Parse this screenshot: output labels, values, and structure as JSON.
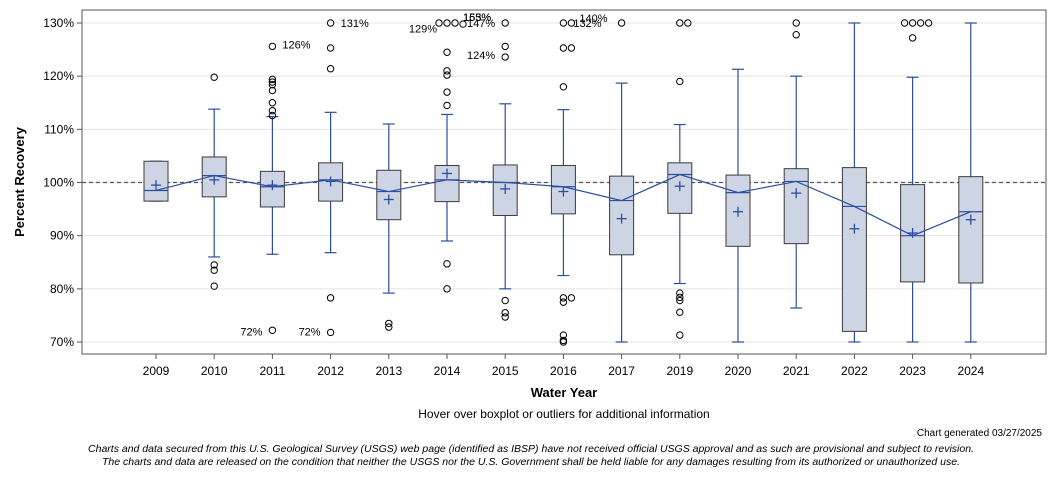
{
  "chart_data": {
    "type": "boxplot",
    "ylabel": "Percent Recovery",
    "xlabel": "Water Year",
    "ylim": [
      70,
      130
    ],
    "y_ticks": [
      70,
      80,
      90,
      100,
      110,
      120,
      130
    ],
    "y_tick_format": "%",
    "reference_line": 100,
    "grid": true,
    "categories": [
      "2009",
      "2010",
      "2011",
      "2012",
      "2013",
      "2014",
      "2015",
      "2016",
      "2017",
      "2019",
      "2020",
      "2021",
      "2022",
      "2023",
      "2024"
    ],
    "boxes": [
      {
        "year": "2009",
        "low": 96.5,
        "q1": 96.5,
        "median": 98.5,
        "q3": 104,
        "high": 104,
        "mean": 99.5,
        "outliers": []
      },
      {
        "year": "2010",
        "low": 86,
        "q1": 97.3,
        "median": 101.3,
        "q3": 104.8,
        "high": 113.8,
        "mean": 100.5,
        "outliers": [
          119.8,
          84.5,
          83.5,
          80.5
        ]
      },
      {
        "year": "2011",
        "low": 86.5,
        "q1": 95.4,
        "median": 99.2,
        "q3": 102.1,
        "high": 112.4,
        "mean": 99.5,
        "outliers": [
          125.6,
          119.4,
          118.9,
          118.4,
          117.3,
          115,
          113.5,
          112.6,
          72.2
        ]
      },
      {
        "year": "2012",
        "low": 86.8,
        "q1": 96.5,
        "median": 100.5,
        "q3": 103.7,
        "high": 113.2,
        "mean": 100.2,
        "outliers": [
          130,
          125.3,
          121.4,
          78.3,
          71.8
        ]
      },
      {
        "year": "2013",
        "low": 79.2,
        "q1": 93,
        "median": 98.3,
        "q3": 102.3,
        "high": 111,
        "mean": 96.8,
        "outliers": [
          73.5,
          72.8
        ]
      },
      {
        "year": "2014",
        "low": 89,
        "q1": 96.4,
        "median": 100.5,
        "q3": 103.2,
        "high": 112.8,
        "mean": 101.7,
        "outliers": [
          130,
          130,
          130,
          129.8,
          124.5,
          121,
          120.2,
          117,
          114.5,
          84.7,
          80
        ]
      },
      {
        "year": "2015",
        "low": 80,
        "q1": 93.8,
        "median": 100,
        "q3": 103.3,
        "high": 114.8,
        "mean": 98.8,
        "outliers": [
          130,
          125.6,
          123.6,
          77.8,
          75.5,
          74.7
        ]
      },
      {
        "year": "2016",
        "low": 82.5,
        "q1": 94.1,
        "median": 99.2,
        "q3": 103.2,
        "high": 113.7,
        "mean": 98.3,
        "outliers": [
          130,
          130,
          125.3,
          125.3,
          118,
          78.3,
          78.3,
          77.5,
          71.3,
          70.3,
          70
        ]
      },
      {
        "year": "2017",
        "low": 70,
        "q1": 86.4,
        "median": 96.6,
        "q3": 101.2,
        "high": 118.7,
        "mean": 93.2,
        "outliers": [
          130
        ]
      },
      {
        "year": "2019",
        "low": 81,
        "q1": 94.2,
        "median": 101.5,
        "q3": 103.7,
        "high": 110.9,
        "mean": 99.3,
        "outliers": [
          130,
          130,
          119,
          79.2,
          78.4,
          77.8,
          75.6,
          71.3
        ]
      },
      {
        "year": "2020",
        "low": 70,
        "q1": 88,
        "median": 98.1,
        "q3": 101.4,
        "high": 121.3,
        "mean": 94.5,
        "outliers": []
      },
      {
        "year": "2021",
        "low": 76.4,
        "q1": 88.5,
        "median": 100.2,
        "q3": 102.6,
        "high": 120,
        "mean": 98,
        "outliers": [
          130,
          127.8
        ]
      },
      {
        "year": "2022",
        "low": 70,
        "q1": 72,
        "median": 95.5,
        "q3": 102.8,
        "high": 130,
        "mean": 91.3,
        "outliers": []
      },
      {
        "year": "2023",
        "low": 70,
        "q1": 81.3,
        "median": 90,
        "q3": 99.6,
        "high": 119.8,
        "mean": 90.5,
        "outliers": [
          130,
          130,
          130,
          130,
          127.2
        ]
      },
      {
        "year": "2024",
        "low": 70,
        "q1": 81.1,
        "median": 94.5,
        "q3": 101.1,
        "high": 130,
        "mean": 93,
        "outliers": []
      }
    ],
    "annotations": [
      {
        "year": "2011",
        "value": 126,
        "text": "126%",
        "side": "right"
      },
      {
        "year": "2011",
        "value": 72,
        "text": "72%",
        "side": "left"
      },
      {
        "year": "2012",
        "value": 131,
        "text": "131%",
        "side": "right"
      },
      {
        "year": "2012",
        "value": 72,
        "text": "72%",
        "side": "left"
      },
      {
        "year": "2014",
        "value": 129,
        "text": "129%",
        "side": "left"
      },
      {
        "year": "2015",
        "value": 163,
        "text": "163%",
        "side": "left-top"
      },
      {
        "year": "2015",
        "value": 155,
        "text": "155%",
        "side": "left-top"
      },
      {
        "year": "2015",
        "value": 147,
        "text": "147%",
        "side": "left"
      },
      {
        "year": "2015",
        "value": 124,
        "text": "124%",
        "side": "left"
      },
      {
        "year": "2016",
        "value": 140,
        "text": "140%",
        "side": "right-top"
      },
      {
        "year": "2016",
        "value": 132,
        "text": "132%",
        "side": "right"
      }
    ]
  },
  "hover_note": "Hover over boxplot or outliers for additional information",
  "generated": "Chart generated 03/27/2025",
  "disclaimer_line1": "Charts and data secured from this U.S. Geological Survey (USGS) web page (identified as IBSP) have not received official USGS approval and as such are provisional and subject to revision.",
  "disclaimer_line2": "The charts and data are released on the condition that neither the USGS nor the U.S. Government shall be held liable for any damages resulting from its authorized or unauthorized use.",
  "colors": {
    "box_fill": "#cdd5e4",
    "box_stroke": "#3a3a3a",
    "line": "#2b4ea0",
    "grid": "#e4e4e4",
    "reference": "#555555"
  }
}
